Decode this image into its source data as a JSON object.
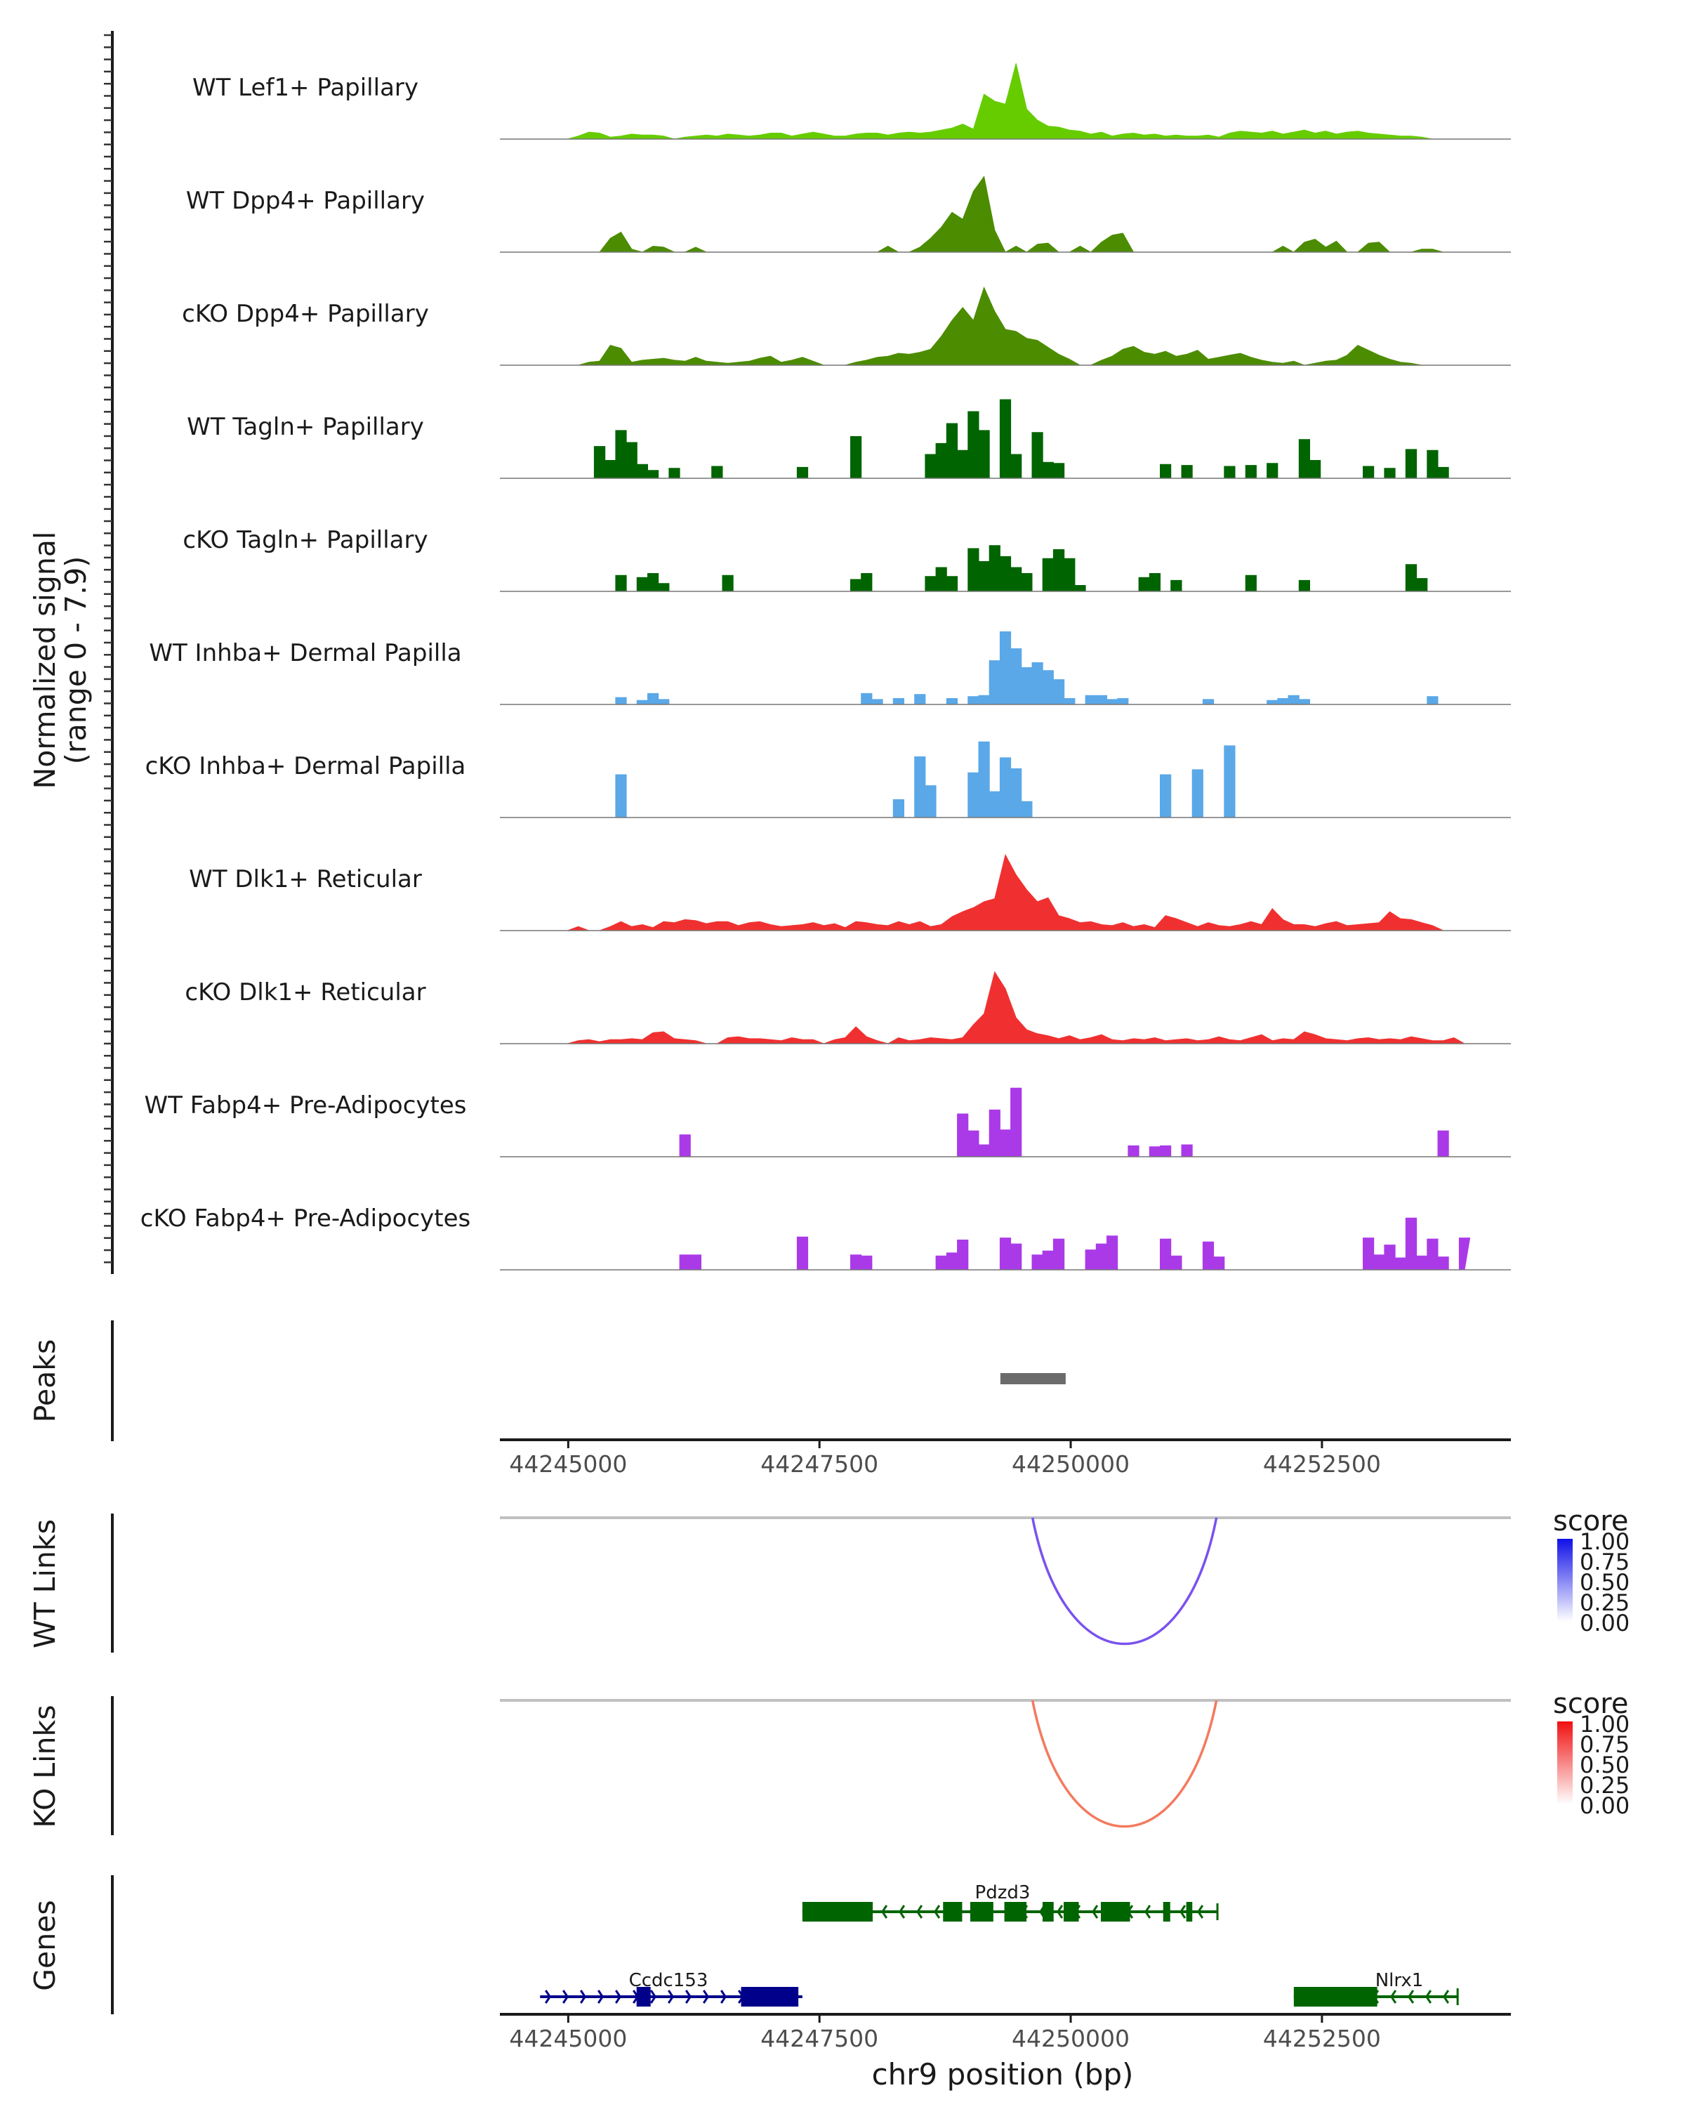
{
  "chart_data": {
    "type": "area",
    "title": "",
    "coverage": {
      "ylabel_line1": "Normalized signal",
      "ylabel_line2": "(range 0 - 7.9)",
      "ylim": [
        0,
        7.9
      ],
      "tracks": [
        {
          "label": "WT Lef1+ Papillary",
          "color": "#66cc00",
          "style": "smooth",
          "values": [
            0,
            0,
            0,
            0.3,
            0.7,
            0.6,
            0.2,
            0.3,
            0.5,
            0.4,
            0.4,
            0.3,
            0,
            0.2,
            0.3,
            0.4,
            0.3,
            0.5,
            0.4,
            0.3,
            0.4,
            0.6,
            0.6,
            0.3,
            0.5,
            0.7,
            0.5,
            0.3,
            0.3,
            0.5,
            0.6,
            0.6,
            0.4,
            0.6,
            0.7,
            0.6,
            0.7,
            0.9,
            1.1,
            1.5,
            1.0,
            4.5,
            3.8,
            3.5,
            7.6,
            3.0,
            1.9,
            1.3,
            1.2,
            0.9,
            0.8,
            0.5,
            0.7,
            0.3,
            0.5,
            0.6,
            0.4,
            0.5,
            0.3,
            0.4,
            0.3,
            0.3,
            0.4,
            0.2,
            0.6,
            0.8,
            0.7,
            0.6,
            0.8,
            0.5,
            0.7,
            0.9,
            0.6,
            0.8,
            0.5,
            0.7,
            0.8,
            0.6,
            0.5,
            0.4,
            0.3,
            0.3,
            0.2,
            0,
            0,
            0,
            0
          ]
        },
        {
          "label": "WT Dpp4+ Papillary",
          "color": "#4c8c00",
          "style": "smooth",
          "values": [
            0,
            0,
            0,
            0,
            0,
            0,
            1.4,
            2.0,
            0.3,
            0,
            0.6,
            0.5,
            0,
            0,
            0.5,
            0,
            0,
            0,
            0,
            0,
            0,
            0,
            0,
            0,
            0,
            0,
            0,
            0,
            0,
            0,
            0,
            0,
            0.6,
            0,
            0,
            0.5,
            1.4,
            2.5,
            4.0,
            3.3,
            6.1,
            7.6,
            2.2,
            0,
            0.6,
            0,
            0.8,
            0.9,
            0,
            0,
            0.6,
            0,
            1.0,
            1.7,
            1.9,
            0,
            0,
            0,
            0,
            0,
            0,
            0,
            0,
            0,
            0,
            0,
            0,
            0,
            0,
            0.6,
            0,
            1.0,
            1.3,
            0.5,
            1.1,
            0,
            0,
            0.9,
            1.0,
            0,
            0,
            0,
            0.3,
            0.3,
            0,
            0,
            0
          ]
        },
        {
          "label": "cKO Dpp4+ Papillary",
          "color": "#4c8c00",
          "style": "smooth",
          "values": [
            0,
            0,
            0,
            0,
            0.3,
            0.4,
            2.0,
            1.7,
            0.3,
            0.5,
            0.6,
            0.7,
            0.5,
            0.4,
            0.8,
            0.4,
            0.3,
            0.2,
            0.3,
            0.4,
            0.7,
            0.9,
            0.3,
            0.5,
            0.8,
            0.4,
            0,
            0,
            0,
            0.3,
            0.5,
            0.8,
            0.9,
            1.2,
            1.1,
            1.3,
            1.6,
            2.9,
            4.5,
            5.8,
            4.5,
            7.8,
            5.4,
            3.6,
            3.4,
            2.7,
            2.5,
            1.8,
            1.1,
            0.6,
            0,
            0,
            0.5,
            0.9,
            1.6,
            1.9,
            1.3,
            1.1,
            1.4,
            0.9,
            1.1,
            1.5,
            0.6,
            0.8,
            1.0,
            1.2,
            0.8,
            0.5,
            0.3,
            0.2,
            0.4,
            0,
            0.2,
            0.4,
            0.5,
            1.0,
            2.0,
            1.5,
            1.0,
            0.6,
            0.3,
            0.2,
            0,
            0,
            0,
            0,
            0
          ]
        },
        {
          "label": "WT Tagln+ Papillary",
          "color": "#006400",
          "style": "jagged",
          "values": [
            0,
            0,
            0,
            0,
            0,
            3.2,
            1.8,
            4.8,
            3.6,
            1.4,
            0.8,
            0,
            1.0,
            0,
            0,
            0,
            1.2,
            0,
            0,
            0,
            0,
            0,
            0,
            0,
            1.1,
            0,
            0,
            0,
            0,
            4.2,
            0,
            0,
            0,
            0,
            0,
            0,
            2.4,
            3.5,
            5.5,
            2.8,
            6.7,
            4.8,
            0,
            7.9,
            2.4,
            0,
            4.6,
            1.6,
            1.5,
            0,
            0,
            0,
            0,
            0,
            0,
            0,
            0,
            0,
            1.4,
            0,
            1.3,
            0,
            0,
            0,
            1.2,
            0,
            1.3,
            0,
            1.5,
            0,
            0,
            3.9,
            1.8,
            0,
            0,
            0,
            0,
            1.2,
            0,
            1.0,
            0,
            2.9,
            0,
            2.8,
            1.1,
            0,
            0
          ]
        },
        {
          "label": "cKO Tagln+ Papillary",
          "color": "#006400",
          "style": "jagged",
          "values": [
            0,
            0,
            0,
            0,
            0,
            0,
            0,
            1.6,
            0,
            1.4,
            1.8,
            0.8,
            0,
            0,
            0,
            0,
            0,
            1.6,
            0,
            0,
            0,
            0,
            0,
            0,
            0,
            0,
            0,
            0,
            0,
            1.2,
            1.8,
            0,
            0,
            0,
            0,
            0,
            1.5,
            2.4,
            1.5,
            0,
            4.3,
            3.0,
            4.6,
            3.5,
            2.4,
            1.8,
            0,
            3.3,
            4.2,
            3.3,
            0.6,
            0,
            0,
            0,
            0,
            0,
            1.4,
            1.8,
            0,
            1.1,
            0,
            0,
            0,
            0,
            0,
            0,
            1.6,
            0,
            0,
            0,
            0,
            1.1,
            0,
            0,
            0,
            0,
            0,
            0,
            0,
            0,
            0,
            2.7,
            1.3,
            0,
            0,
            0,
            0
          ]
        },
        {
          "label": "WT Inhba+ Dermal Papilla",
          "color": "#5aa8e8",
          "style": "jagged",
          "values": [
            0,
            0,
            0,
            0,
            0,
            0,
            0,
            0.7,
            0,
            0.4,
            1.1,
            0.5,
            0,
            0,
            0,
            0,
            0,
            0,
            0,
            0,
            0,
            0,
            0,
            0,
            0,
            0,
            0,
            0,
            0,
            0,
            1.1,
            0.5,
            0,
            0.6,
            0,
            1.0,
            0,
            0,
            0.6,
            0,
            0.8,
            0.9,
            4.4,
            7.3,
            5.6,
            3.7,
            4.2,
            3.4,
            2.5,
            0.6,
            0,
            0.9,
            0.9,
            0.5,
            0.6,
            0,
            0,
            0,
            0,
            0,
            0,
            0,
            0.5,
            0,
            0,
            0,
            0,
            0,
            0.4,
            0.6,
            0.9,
            0.5,
            0,
            0,
            0,
            0,
            0,
            0,
            0,
            0,
            0,
            0,
            0,
            0.8,
            0,
            0,
            0
          ]
        },
        {
          "label": "cKO Inhba+ Dermal Papilla",
          "color": "#5aa8e8",
          "style": "jagged",
          "values": [
            0,
            0,
            0,
            0,
            0,
            0,
            0,
            4.3,
            0,
            0,
            0,
            0,
            0,
            0,
            0,
            0,
            0,
            0,
            0,
            0,
            0,
            0,
            0,
            0,
            0,
            0,
            0,
            0,
            0,
            0,
            0,
            0,
            0,
            1.8,
            0,
            6.1,
            3.2,
            0,
            0,
            0,
            4.5,
            7.6,
            2.6,
            6.0,
            4.9,
            1.6,
            0,
            0,
            0,
            0,
            0,
            0,
            0,
            0,
            0,
            0,
            0,
            0,
            4.3,
            0,
            0,
            4.8,
            0,
            0,
            7.2,
            0,
            0,
            0,
            0,
            0,
            0,
            0,
            0,
            0,
            0,
            0,
            0,
            0,
            0,
            0,
            0,
            0,
            0,
            0,
            0,
            0,
            0
          ]
        },
        {
          "label": "WT Dlk1+ Reticular",
          "color": "#f03030",
          "style": "smooth",
          "values": [
            0,
            0,
            0,
            0.4,
            0,
            0,
            0.4,
            0.9,
            0.4,
            0.6,
            0.3,
            0.9,
            0.8,
            1.1,
            1.0,
            0.7,
            0.9,
            0.9,
            0.5,
            0.8,
            0.9,
            0.6,
            0.4,
            0.5,
            0.6,
            0.8,
            0.5,
            0.7,
            0.3,
            0.9,
            0.8,
            0.6,
            0.5,
            0.9,
            0.6,
            0.9,
            0.4,
            0.6,
            1.4,
            1.9,
            2.3,
            2.9,
            3.2,
            7.6,
            5.6,
            4.1,
            2.9,
            3.3,
            1.5,
            1.2,
            0.8,
            0.9,
            0.6,
            0.5,
            0.8,
            0.4,
            0.6,
            0.3,
            1.5,
            1.2,
            0.8,
            0.4,
            0.8,
            0.5,
            0.4,
            0.6,
            0.9,
            0.6,
            2.2,
            1.1,
            0.6,
            0.6,
            0.4,
            0.7,
            0.9,
            0.5,
            0.6,
            0.7,
            0.8,
            1.9,
            1.2,
            1.1,
            0.8,
            0.5,
            0,
            0,
            0
          ]
        },
        {
          "label": "cKO Dlk1+ Reticular",
          "color": "#f03030",
          "style": "smooth",
          "values": [
            0,
            0,
            0,
            0.3,
            0.4,
            0.2,
            0.4,
            0.4,
            0.5,
            0.4,
            1.1,
            1.2,
            0.5,
            0.4,
            0.3,
            0,
            0,
            0.6,
            0.7,
            0.5,
            0.5,
            0.4,
            0.3,
            0.6,
            0.4,
            0.4,
            0,
            0.4,
            0.6,
            1.7,
            0.7,
            0.3,
            0,
            0.6,
            0.3,
            0.4,
            0.6,
            0.5,
            0.4,
            0.6,
            1.9,
            3.0,
            7.2,
            5.5,
            2.6,
            1.4,
            1.0,
            0.8,
            0.5,
            0.8,
            0.4,
            0.6,
            0.9,
            0.4,
            0.3,
            0.5,
            0.4,
            0.6,
            0.3,
            0.4,
            0.5,
            0.3,
            0.4,
            0.7,
            0.4,
            0.3,
            0.6,
            0.9,
            0.3,
            0.5,
            0.4,
            1.2,
            0.9,
            0.5,
            0.4,
            0.3,
            0.5,
            0.6,
            0.4,
            0.5,
            0.4,
            0.7,
            0.5,
            0.3,
            0.3,
            0.6,
            0
          ]
        },
        {
          "label": "WT Fabp4+ Pre-Adipocytes",
          "color": "#aa3ae8",
          "style": "jagged",
          "values": [
            0,
            0,
            0,
            0,
            0,
            0,
            0,
            0,
            0,
            0,
            0,
            0,
            0,
            2.2,
            0,
            0,
            0,
            0,
            0,
            0,
            0,
            0,
            0,
            0,
            0,
            0,
            0,
            0,
            0,
            0,
            0,
            0,
            0,
            0,
            0,
            0,
            0,
            0,
            0,
            4.3,
            2.6,
            1.2,
            4.7,
            2.7,
            6.9,
            0,
            0,
            0,
            0,
            0,
            0,
            0,
            0,
            0,
            0,
            1.1,
            0,
            1.0,
            1.1,
            0,
            1.2,
            0,
            0,
            0,
            0,
            0,
            0,
            0,
            0,
            0,
            0,
            0,
            0,
            0,
            0,
            0,
            0,
            0,
            0,
            0,
            0,
            0,
            0,
            0,
            2.6,
            0,
            0
          ]
        },
        {
          "label": "cKO Fabp4+ Pre-Adipocytes",
          "color": "#aa3ae8",
          "style": "jagged",
          "values": [
            0,
            0,
            0,
            0,
            0,
            0,
            0,
            0,
            0,
            0,
            0,
            0,
            0,
            1.5,
            1.5,
            0,
            0,
            0,
            0,
            0,
            0,
            0,
            0,
            0,
            3.3,
            0,
            0,
            0,
            0,
            1.5,
            1.4,
            0,
            0,
            0,
            0,
            0,
            0,
            1.4,
            1.7,
            3.0,
            0,
            0,
            0,
            3.2,
            2.6,
            0,
            1.5,
            1.9,
            3.1,
            0,
            0,
            2.0,
            2.6,
            3.4,
            0,
            0,
            0,
            0,
            3.1,
            1.4,
            0,
            0,
            2.8,
            1.3,
            0,
            0,
            0,
            0,
            0,
            0,
            0,
            0,
            0,
            0,
            0,
            0,
            0,
            3.2,
            1.5,
            2.5,
            1.2,
            5.2,
            1.4,
            3.1,
            1.3,
            0,
            3.2
          ]
        }
      ]
    },
    "peaks": {
      "label": "Peaks",
      "color": "#6b6b6b",
      "regions": [
        [
          49300,
          49950
        ]
      ]
    },
    "links": [
      {
        "label": "WT Links",
        "color": "#7a52ee",
        "start": 49620,
        "end": 51450,
        "legend_title": "score",
        "legend_high": "#1010e8",
        "legend_ticks": [
          "1.00",
          "0.75",
          "0.50",
          "0.25",
          "0.00"
        ]
      },
      {
        "label": "KO Links",
        "color": "#f47a5e",
        "start": 49620,
        "end": 51450,
        "legend_title": "score",
        "legend_high": "#f01010",
        "legend_ticks": [
          "1.00",
          "0.75",
          "0.50",
          "0.25",
          "0.00"
        ]
      }
    ],
    "genes": {
      "label": "Genes",
      "list": [
        {
          "name": "Pdzd3",
          "color": "#006400",
          "strand": "-",
          "start": 47330,
          "end": 51460,
          "exons": [
            [
              47330,
              48030
            ],
            [
              48730,
              48920
            ],
            [
              49000,
              49230
            ],
            [
              49340,
              49560
            ],
            [
              49720,
              49830
            ],
            [
              49930,
              50080
            ],
            [
              50380,
              50300
            ],
            [
              50370,
              50590
            ],
            [
              50920,
              50990
            ],
            [
              51150,
              51210
            ]
          ]
        },
        {
          "name": "Ccdc153",
          "color": "#00008b",
          "strand": "+",
          "start": 44720,
          "end": 47330,
          "exons": [
            [
              45680,
              45820
            ],
            [
              46720,
              47290
            ]
          ]
        },
        {
          "name": "Nlrx1",
          "color": "#006400",
          "strand": "-",
          "start": 52220,
          "end": 53850,
          "exons": [
            [
              52220,
              53050
            ]
          ]
        }
      ]
    },
    "x_axis": {
      "xlabel": "chr9 position (bp)",
      "xlim": [
        44244320,
        44254380
      ],
      "offset": 44200000,
      "ticks": [
        44245000,
        44247500,
        44250000,
        44252500
      ],
      "tick_labels": [
        "44245000",
        "44247500",
        "44250000",
        "44252500"
      ]
    }
  }
}
